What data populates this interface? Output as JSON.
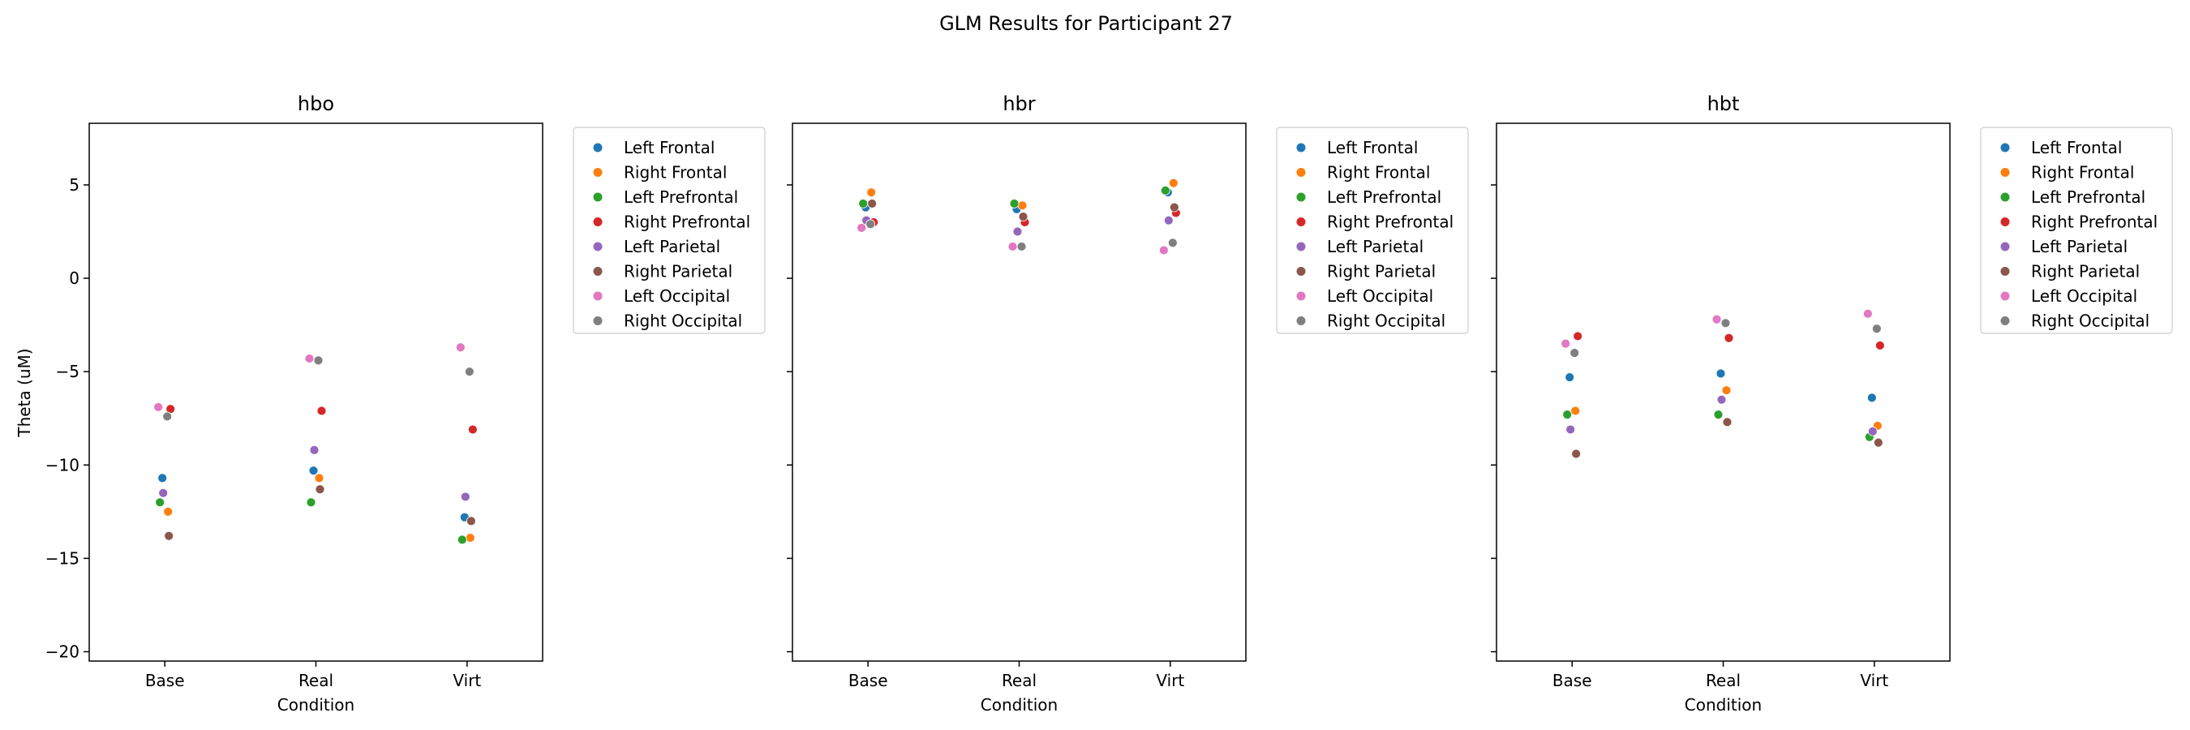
{
  "suptitle": "GLM Results for Participant 27",
  "chart_data": {
    "type": "scatter",
    "categories": [
      "Base",
      "Real",
      "Virt"
    ],
    "xlabel": "Condition",
    "ylabel": "Theta (uM)",
    "ylim": [
      -20.5,
      8.3
    ],
    "yticks": [
      5,
      0,
      -5,
      -10,
      -15,
      -20
    ],
    "ytick_labels": [
      "5",
      "0",
      "−5",
      "−10",
      "−15",
      "−20"
    ],
    "grid": false,
    "legend_placement": "outside-upper-right",
    "series": [
      {
        "name": "Left Frontal",
        "color": "#1f77b4"
      },
      {
        "name": "Right Frontal",
        "color": "#ff7f0e"
      },
      {
        "name": "Left Prefrontal",
        "color": "#2ca02c"
      },
      {
        "name": "Right Prefrontal",
        "color": "#d62728"
      },
      {
        "name": "Left Parietal",
        "color": "#9467bd"
      },
      {
        "name": "Right Parietal",
        "color": "#8c564b"
      },
      {
        "name": "Left Occipital",
        "color": "#e377c2"
      },
      {
        "name": "Right Occipital",
        "color": "#7f7f7f"
      }
    ],
    "panels": [
      {
        "title": "hbo",
        "values": {
          "Base": [
            -10.7,
            -12.5,
            -12.0,
            -7.0,
            -11.5,
            -13.8,
            -6.9,
            -7.4
          ],
          "Real": [
            -10.3,
            -10.7,
            -12.0,
            -7.1,
            -9.2,
            -11.3,
            -4.3,
            -4.4
          ],
          "Virt": [
            -12.8,
            -13.9,
            -14.0,
            -8.1,
            -11.7,
            -13.0,
            -3.7,
            -5.0
          ]
        }
      },
      {
        "title": "hbr",
        "values": {
          "Base": [
            3.8,
            4.6,
            4.0,
            3.0,
            3.1,
            4.0,
            2.7,
            2.9
          ],
          "Real": [
            3.7,
            3.9,
            4.0,
            3.0,
            2.5,
            3.3,
            1.7,
            1.7
          ],
          "Virt": [
            4.6,
            5.1,
            4.7,
            3.5,
            3.1,
            3.8,
            1.5,
            1.9
          ]
        }
      },
      {
        "title": "hbt",
        "values": {
          "Base": [
            -5.3,
            -7.1,
            -7.3,
            -3.1,
            -8.1,
            -9.4,
            -3.5,
            -4.0
          ],
          "Real": [
            -5.1,
            -6.0,
            -7.3,
            -3.2,
            -6.5,
            -7.7,
            -2.2,
            -2.4
          ],
          "Virt": [
            -6.4,
            -7.9,
            -8.5,
            -3.6,
            -8.2,
            -8.8,
            -1.9,
            -2.7
          ]
        }
      }
    ]
  }
}
